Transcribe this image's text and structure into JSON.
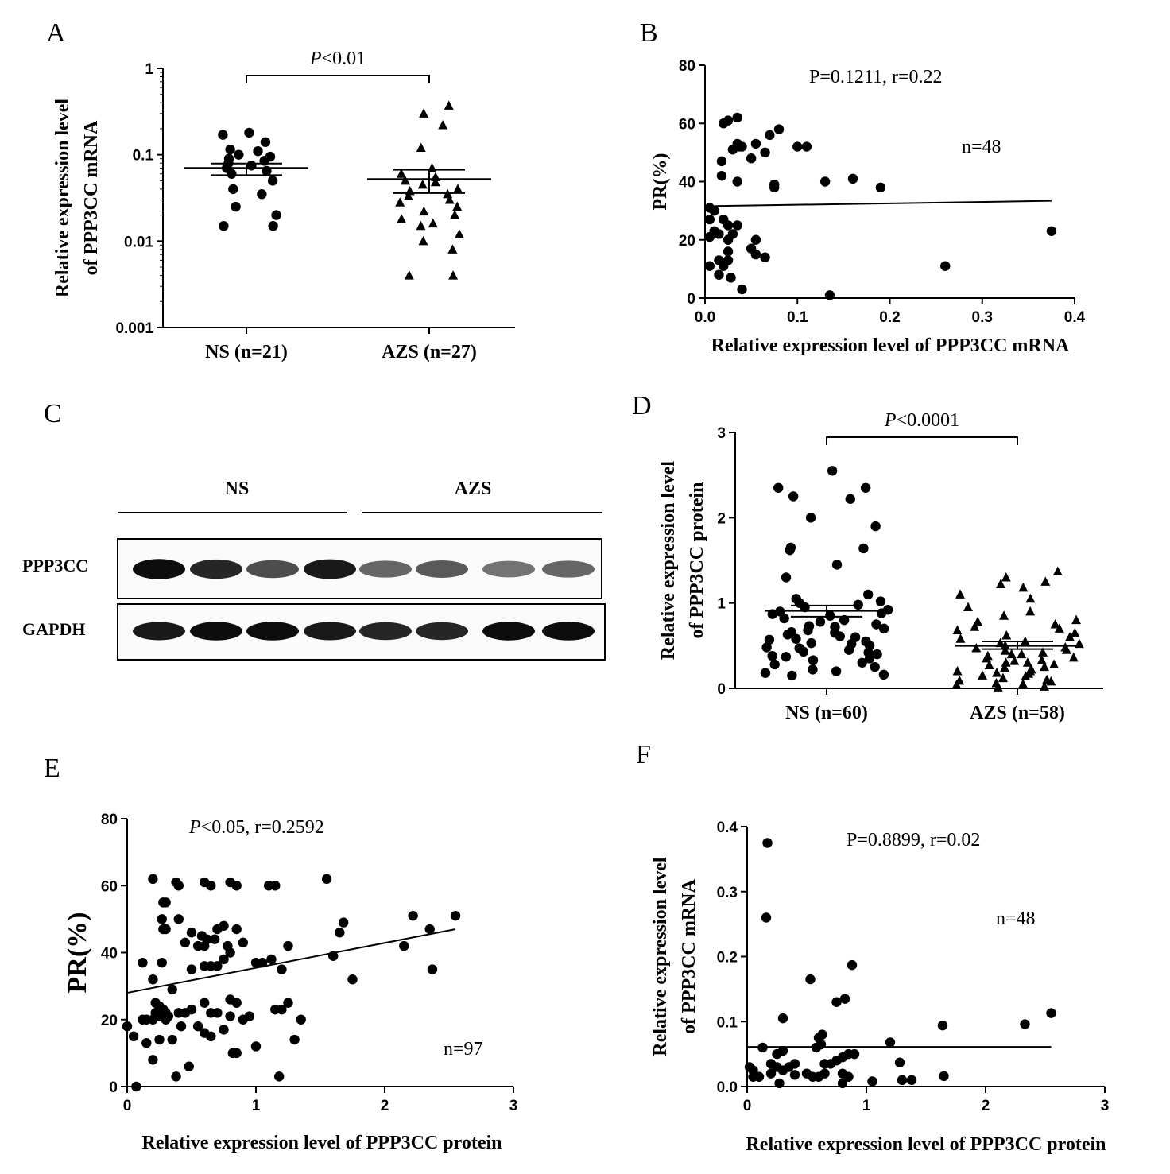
{
  "panel_labels": {
    "A": "A",
    "B": "B",
    "C": "C",
    "D": "D",
    "E": "E",
    "F": "F"
  },
  "blot": {
    "group_labels": [
      "NS",
      "AZS"
    ],
    "band_labels": [
      "PPP3CC",
      "GAPDH"
    ],
    "ppp3cc_band_intensity": [
      0.95,
      0.85,
      0.7,
      0.9,
      0.6,
      0.65,
      0.55,
      0.6
    ],
    "gapdh_band_intensity": [
      0.9,
      0.95,
      0.95,
      0.9,
      0.85,
      0.85,
      0.95,
      0.95
    ],
    "lanes_per_group": 4
  },
  "chart_data": [
    {
      "id": "A",
      "type": "scatter",
      "subtype": "dot-plot",
      "yscale": "log",
      "ylim": [
        0.001,
        1
      ],
      "ytick_labels": [
        "1",
        "0.1",
        "0.01",
        "0.001"
      ],
      "ytick_values": [
        1,
        0.1,
        0.01,
        0.001
      ],
      "ylabel_lines": [
        "Relative expression level",
        "of PPP3CC mRNA"
      ],
      "categories": [
        "NS (n=21)",
        "AZS (n=27)"
      ],
      "annotation": {
        "p_italic": "P",
        "rest": "<0.01"
      },
      "groups": [
        {
          "name": "NS (n=21)",
          "marker": "circle",
          "mean": 0.07,
          "sem_low": 0.058,
          "sem_high": 0.079,
          "values": [
            0.18,
            0.17,
            0.14,
            0.115,
            0.11,
            0.1,
            0.095,
            0.09,
            0.085,
            0.08,
            0.075,
            0.07,
            0.065,
            0.06,
            0.05,
            0.04,
            0.035,
            0.025,
            0.02,
            0.015,
            0.015
          ]
        },
        {
          "name": "AZS (n=27)",
          "marker": "triangle",
          "mean": 0.052,
          "sem_low": 0.036,
          "sem_high": 0.067,
          "values": [
            0.37,
            0.3,
            0.22,
            0.12,
            0.07,
            0.06,
            0.055,
            0.05,
            0.048,
            0.045,
            0.04,
            0.038,
            0.035,
            0.033,
            0.03,
            0.028,
            0.025,
            0.022,
            0.02,
            0.018,
            0.016,
            0.015,
            0.012,
            0.01,
            0.008,
            0.004,
            0.004
          ]
        }
      ]
    },
    {
      "id": "B",
      "type": "scatter",
      "xlim": [
        0,
        0.4
      ],
      "ylim": [
        0,
        80
      ],
      "xtick_labels": [
        "0.0",
        "0.1",
        "0.2",
        "0.3",
        "0.4"
      ],
      "xtick_values": [
        0,
        0.1,
        0.2,
        0.3,
        0.4
      ],
      "ytick_labels": [
        "0",
        "20",
        "40",
        "60",
        "80"
      ],
      "ytick_values": [
        0,
        20,
        40,
        60,
        80
      ],
      "xlabel": "Relative expression level of PPP3CC mRNA",
      "ylabel": "PR(%)",
      "annotation": "P=0.1211, r=0.22",
      "n_label": "n=48",
      "fit_line": [
        [
          0.01,
          31.6
        ],
        [
          0.375,
          33.4
        ]
      ],
      "points": [
        [
          0.02,
          60
        ],
        [
          0.025,
          61
        ],
        [
          0.035,
          62
        ],
        [
          0.03,
          51
        ],
        [
          0.035,
          53
        ],
        [
          0.037,
          52
        ],
        [
          0.04,
          52
        ],
        [
          0.055,
          53
        ],
        [
          0.05,
          48
        ],
        [
          0.065,
          50
        ],
        [
          0.07,
          56
        ],
        [
          0.08,
          58
        ],
        [
          0.1,
          52
        ],
        [
          0.11,
          52
        ],
        [
          0.018,
          47
        ],
        [
          0.018,
          42
        ],
        [
          0.035,
          40
        ],
        [
          0.075,
          39
        ],
        [
          0.075,
          38
        ],
        [
          0.13,
          40
        ],
        [
          0.16,
          41
        ],
        [
          0.19,
          38
        ],
        [
          0.005,
          31
        ],
        [
          0.01,
          30
        ],
        [
          0.005,
          27
        ],
        [
          0.02,
          27
        ],
        [
          0.025,
          25
        ],
        [
          0.035,
          25
        ],
        [
          0.01,
          23
        ],
        [
          0.015,
          22
        ],
        [
          0.03,
          22
        ],
        [
          0.005,
          21
        ],
        [
          0.025,
          20
        ],
        [
          0.055,
          20
        ],
        [
          0.05,
          17
        ],
        [
          0.025,
          16
        ],
        [
          0.055,
          15
        ],
        [
          0.065,
          14
        ],
        [
          0.015,
          13
        ],
        [
          0.025,
          13
        ],
        [
          0.02,
          11
        ],
        [
          0.005,
          11
        ],
        [
          0.015,
          8
        ],
        [
          0.028,
          7
        ],
        [
          0.04,
          3
        ],
        [
          0.135,
          1
        ],
        [
          0.26,
          11
        ],
        [
          0.375,
          23
        ]
      ]
    },
    {
      "id": "D",
      "type": "scatter",
      "subtype": "dot-plot",
      "ylim": [
        0,
        3
      ],
      "ytick_labels": [
        "0",
        "1",
        "2",
        "3"
      ],
      "ytick_values": [
        0,
        1,
        2,
        3
      ],
      "ylabel_lines": [
        "Relative expression level",
        "of PPP3CC protein"
      ],
      "categories": [
        "NS (n=60)",
        "AZS (n=58)"
      ],
      "annotation": {
        "p_italic": "P",
        "rest": "<0.0001"
      },
      "groups": [
        {
          "name": "NS (n=60)",
          "marker": "circle",
          "mean": 0.91,
          "sem_low": 0.84,
          "sem_high": 0.97,
          "values": [
            2.55,
            2.35,
            2.35,
            2.25,
            2.22,
            2.0,
            1.9,
            1.65,
            1.64,
            1.62,
            1.45,
            1.3,
            1.1,
            1.05,
            1.02,
            1.0,
            0.98,
            0.95,
            0.92,
            0.9,
            0.88,
            0.87,
            0.85,
            0.82,
            0.8,
            0.78,
            0.75,
            0.73,
            0.7,
            0.68,
            0.65,
            0.63,
            0.6,
            0.58,
            0.55,
            0.53,
            0.5,
            0.48,
            0.45,
            0.43,
            0.4,
            0.38,
            0.35,
            0.33,
            0.3,
            0.28,
            0.25,
            0.22,
            0.2,
            0.18,
            0.16,
            0.15,
            0.72,
            0.66,
            0.61,
            0.57,
            0.52,
            0.47,
            0.42,
            0.37
          ]
        },
        {
          "name": "AZS (n=58)",
          "marker": "triangle",
          "mean": 0.5,
          "sem_low": 0.46,
          "sem_high": 0.55,
          "values": [
            1.37,
            1.3,
            1.25,
            1.22,
            1.18,
            1.1,
            1.05,
            0.95,
            0.9,
            0.85,
            0.8,
            0.78,
            0.75,
            0.72,
            0.7,
            0.68,
            0.65,
            0.62,
            0.6,
            0.58,
            0.55,
            0.53,
            0.52,
            0.5,
            0.48,
            0.47,
            0.45,
            0.44,
            0.42,
            0.4,
            0.4,
            0.38,
            0.36,
            0.35,
            0.33,
            0.32,
            0.3,
            0.3,
            0.28,
            0.27,
            0.25,
            0.24,
            0.22,
            0.2,
            0.2,
            0.18,
            0.17,
            0.15,
            0.14,
            0.12,
            0.1,
            0.09,
            0.08,
            0.06,
            0.05,
            0.04,
            0.02,
            0.01
          ]
        }
      ]
    },
    {
      "id": "E",
      "type": "scatter",
      "xlim": [
        0,
        3
      ],
      "ylim": [
        0,
        80
      ],
      "xtick_labels": [
        "0",
        "1",
        "2",
        "3"
      ],
      "xtick_values": [
        0,
        1,
        2,
        3
      ],
      "ytick_labels": [
        "0",
        "20",
        "40",
        "60",
        "80"
      ],
      "ytick_values": [
        0,
        20,
        40,
        60,
        80
      ],
      "xlabel": "Relative expression level of PPP3CC protein",
      "ylabel": "PR(%)",
      "annotation": {
        "p_italic": "P",
        "rest": "<0.05,    r=0.2592"
      },
      "n_label": "n=97",
      "fit_line": [
        [
          0,
          28
        ],
        [
          2.55,
          47
        ]
      ],
      "points": [
        [
          0.2,
          62
        ],
        [
          0.38,
          61
        ],
        [
          0.4,
          60
        ],
        [
          0.6,
          61
        ],
        [
          0.65,
          60
        ],
        [
          0.8,
          61
        ],
        [
          0.85,
          60
        ],
        [
          1.1,
          60
        ],
        [
          1.15,
          60
        ],
        [
          1.55,
          62
        ],
        [
          0.28,
          55
        ],
        [
          0.3,
          55
        ],
        [
          0.27,
          50
        ],
        [
          0.4,
          50
        ],
        [
          0.28,
          47
        ],
        [
          0.3,
          47
        ],
        [
          0.5,
          46
        ],
        [
          0.58,
          45
        ],
        [
          0.62,
          44
        ],
        [
          0.68,
          44
        ],
        [
          0.7,
          47
        ],
        [
          0.75,
          48
        ],
        [
          0.85,
          47
        ],
        [
          0.45,
          43
        ],
        [
          0.55,
          42
        ],
        [
          0.6,
          42
        ],
        [
          0.78,
          42
        ],
        [
          0.9,
          43
        ],
        [
          0.8,
          40
        ],
        [
          0.75,
          38
        ],
        [
          0.27,
          37
        ],
        [
          0.12,
          37
        ],
        [
          0.6,
          36
        ],
        [
          0.65,
          36
        ],
        [
          0.7,
          36
        ],
        [
          0.5,
          35
        ],
        [
          1.0,
          37
        ],
        [
          1.05,
          37
        ],
        [
          1.12,
          38
        ],
        [
          1.2,
          35
        ],
        [
          1.25,
          42
        ],
        [
          1.6,
          39
        ],
        [
          1.65,
          46
        ],
        [
          1.68,
          49
        ],
        [
          1.75,
          32
        ],
        [
          2.15,
          42
        ],
        [
          2.22,
          51
        ],
        [
          2.35,
          47
        ],
        [
          2.37,
          35
        ],
        [
          2.55,
          51
        ],
        [
          0.2,
          32
        ],
        [
          0.35,
          29
        ],
        [
          0.22,
          25
        ],
        [
          0.25,
          24
        ],
        [
          0.28,
          23
        ],
        [
          0.3,
          22
        ],
        [
          0.32,
          21
        ],
        [
          0.22,
          22
        ],
        [
          0.25,
          21
        ],
        [
          0.3,
          20
        ],
        [
          0.12,
          20
        ],
        [
          0.15,
          20
        ],
        [
          0.2,
          20
        ],
        [
          0.45,
          22
        ],
        [
          0.5,
          23
        ],
        [
          0.6,
          25
        ],
        [
          0.65,
          22
        ],
        [
          0.7,
          22
        ],
        [
          0.8,
          26
        ],
        [
          0.85,
          25
        ],
        [
          0.9,
          20
        ],
        [
          0.95,
          21
        ],
        [
          1.15,
          23
        ],
        [
          1.2,
          23
        ],
        [
          1.25,
          25
        ],
        [
          1.35,
          20
        ],
        [
          0.4,
          22
        ],
        [
          0.42,
          18
        ],
        [
          0.55,
          18
        ],
        [
          0.65,
          15
        ],
        [
          0.75,
          17
        ],
        [
          0.8,
          21
        ],
        [
          0.85,
          10
        ],
        [
          0.82,
          10
        ],
        [
          0.05,
          15
        ],
        [
          0.15,
          13
        ],
        [
          0.25,
          14
        ],
        [
          0.35,
          14
        ],
        [
          0.6,
          16
        ],
        [
          1.0,
          12
        ],
        [
          1.3,
          14
        ],
        [
          0.2,
          8
        ],
        [
          0.48,
          6
        ],
        [
          0.38,
          3
        ],
        [
          1.18,
          3
        ],
        [
          0.07,
          0
        ],
        [
          0.0,
          18
        ]
      ]
    },
    {
      "id": "F",
      "type": "scatter",
      "xlim": [
        0,
        3
      ],
      "ylim": [
        0,
        0.4
      ],
      "xtick_labels": [
        "0",
        "1",
        "2",
        "3"
      ],
      "xtick_values": [
        0,
        1,
        2,
        3
      ],
      "ytick_labels": [
        "0.0",
        "0.1",
        "0.2",
        "0.3",
        "0.4"
      ],
      "ytick_values": [
        0,
        0.1,
        0.2,
        0.3,
        0.4
      ],
      "xlabel": "Relative expression level of PPP3CC protein",
      "ylabel_lines": [
        "Relative expression level",
        "of PPP3CC mRNA"
      ],
      "annotation": "P=0.8899, r=0.02",
      "n_label": "n=48",
      "fit_line": [
        [
          0,
          0.061
        ],
        [
          2.55,
          0.061
        ]
      ],
      "points": [
        [
          0.17,
          0.375
        ],
        [
          0.16,
          0.26
        ],
        [
          0.53,
          0.165
        ],
        [
          0.88,
          0.187
        ],
        [
          0.82,
          0.135
        ],
        [
          0.75,
          0.13
        ],
        [
          1.64,
          0.094
        ],
        [
          2.33,
          0.096
        ],
        [
          2.55,
          0.113
        ],
        [
          0.3,
          0.105
        ],
        [
          0.13,
          0.06
        ],
        [
          0.6,
          0.075
        ],
        [
          0.63,
          0.08
        ],
        [
          0.58,
          0.06
        ],
        [
          0.62,
          0.065
        ],
        [
          1.2,
          0.068
        ],
        [
          0.25,
          0.05
        ],
        [
          0.3,
          0.055
        ],
        [
          0.8,
          0.045
        ],
        [
          0.85,
          0.05
        ],
        [
          0.9,
          0.05
        ],
        [
          0.02,
          0.03
        ],
        [
          0.05,
          0.025
        ],
        [
          0.2,
          0.035
        ],
        [
          0.25,
          0.03
        ],
        [
          0.35,
          0.03
        ],
        [
          0.4,
          0.035
        ],
        [
          0.65,
          0.035
        ],
        [
          0.7,
          0.035
        ],
        [
          0.75,
          0.04
        ],
        [
          1.28,
          0.037
        ],
        [
          0.05,
          0.015
        ],
        [
          0.2,
          0.02
        ],
        [
          0.3,
          0.025
        ],
        [
          0.5,
          0.02
        ],
        [
          0.55,
          0.015
        ],
        [
          0.6,
          0.015
        ],
        [
          0.65,
          0.02
        ],
        [
          0.8,
          0.02
        ],
        [
          0.85,
          0.015
        ],
        [
          1.3,
          0.01
        ],
        [
          1.38,
          0.01
        ],
        [
          1.65,
          0.016
        ],
        [
          0.1,
          0.015
        ],
        [
          0.4,
          0.018
        ],
        [
          0.27,
          0.005
        ],
        [
          0.8,
          0.005
        ],
        [
          1.05,
          0.008
        ]
      ]
    }
  ]
}
